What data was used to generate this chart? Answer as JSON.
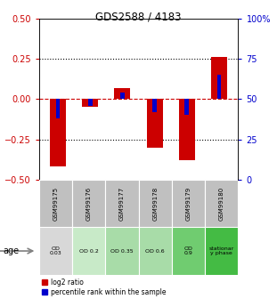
{
  "title": "GDS2588 / 4183",
  "samples": [
    "GSM99175",
    "GSM99176",
    "GSM99177",
    "GSM99178",
    "GSM99179",
    "GSM99180"
  ],
  "log2_ratio": [
    -0.42,
    -0.05,
    0.07,
    -0.3,
    -0.38,
    0.26
  ],
  "percentile_rank": [
    38,
    46,
    54,
    42,
    40,
    65
  ],
  "ylim_left": [
    -0.5,
    0.5
  ],
  "ylim_right": [
    0,
    100
  ],
  "yticks_left": [
    -0.5,
    -0.25,
    0,
    0.25,
    0.5
  ],
  "yticks_right": [
    0,
    25,
    50,
    75,
    100
  ],
  "bar_color_red": "#cc0000",
  "bar_color_blue": "#0000cc",
  "age_labels": [
    "OD\n0.03",
    "OD 0.2",
    "OD 0.35",
    "OD 0.6",
    "OD\n0.9",
    "stationar\ny phase"
  ],
  "age_bg_colors": [
    "#d8d8d8",
    "#c8eac8",
    "#a8dca8",
    "#a8dca8",
    "#70cc70",
    "#44bb44"
  ],
  "sample_bg_color": "#c0c0c0",
  "age_row_label": "age",
  "dotted_line_color": "black",
  "zero_line_color": "#cc0000",
  "legend_items": [
    "log2 ratio",
    "percentile rank within the sample"
  ],
  "fig_width": 3.11,
  "fig_height": 3.45,
  "dpi": 100
}
